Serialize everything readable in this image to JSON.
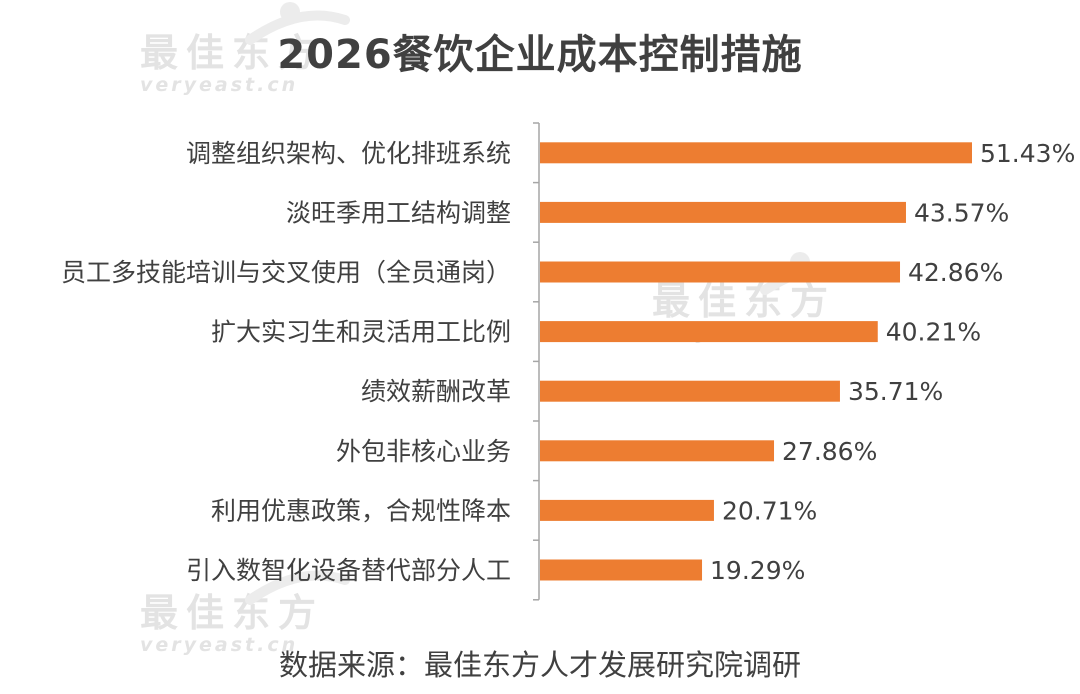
{
  "title": "2026餐饮企业成本控制措施",
  "source": "数据来源：最佳东方人才发展研究院调研",
  "watermark": {
    "cn": "最佳东方",
    "en": "veryeast.cn"
  },
  "colors": {
    "bar": "#ED7D31",
    "text": "#404040",
    "axis": "#A6A6A6",
    "watermark": "#E3E3E3"
  },
  "chart_data": {
    "type": "bar",
    "orientation": "horizontal",
    "title": "2026餐饮企业成本控制措施",
    "xlabel": "",
    "ylabel": "",
    "categories": [
      "调整组织架构、优化排班系统",
      "淡旺季用工结构调整",
      "员工多技能培训与交叉使用（全员通岗）",
      "扩大实习生和灵活用工比例",
      "绩效薪酬改革",
      "外包非核心业务",
      "利用优惠政策，合规性降本",
      "引入数智化设备替代部分人工"
    ],
    "values": [
      51.43,
      43.57,
      42.86,
      40.21,
      35.71,
      27.86,
      20.71,
      19.29
    ],
    "value_labels": [
      "51.43%",
      "43.57%",
      "42.86%",
      "40.21%",
      "35.71%",
      "27.86%",
      "20.71%",
      "19.29%"
    ],
    "unit": "%",
    "xlim": [
      0,
      51.43
    ],
    "grid": false,
    "legend": "none"
  }
}
